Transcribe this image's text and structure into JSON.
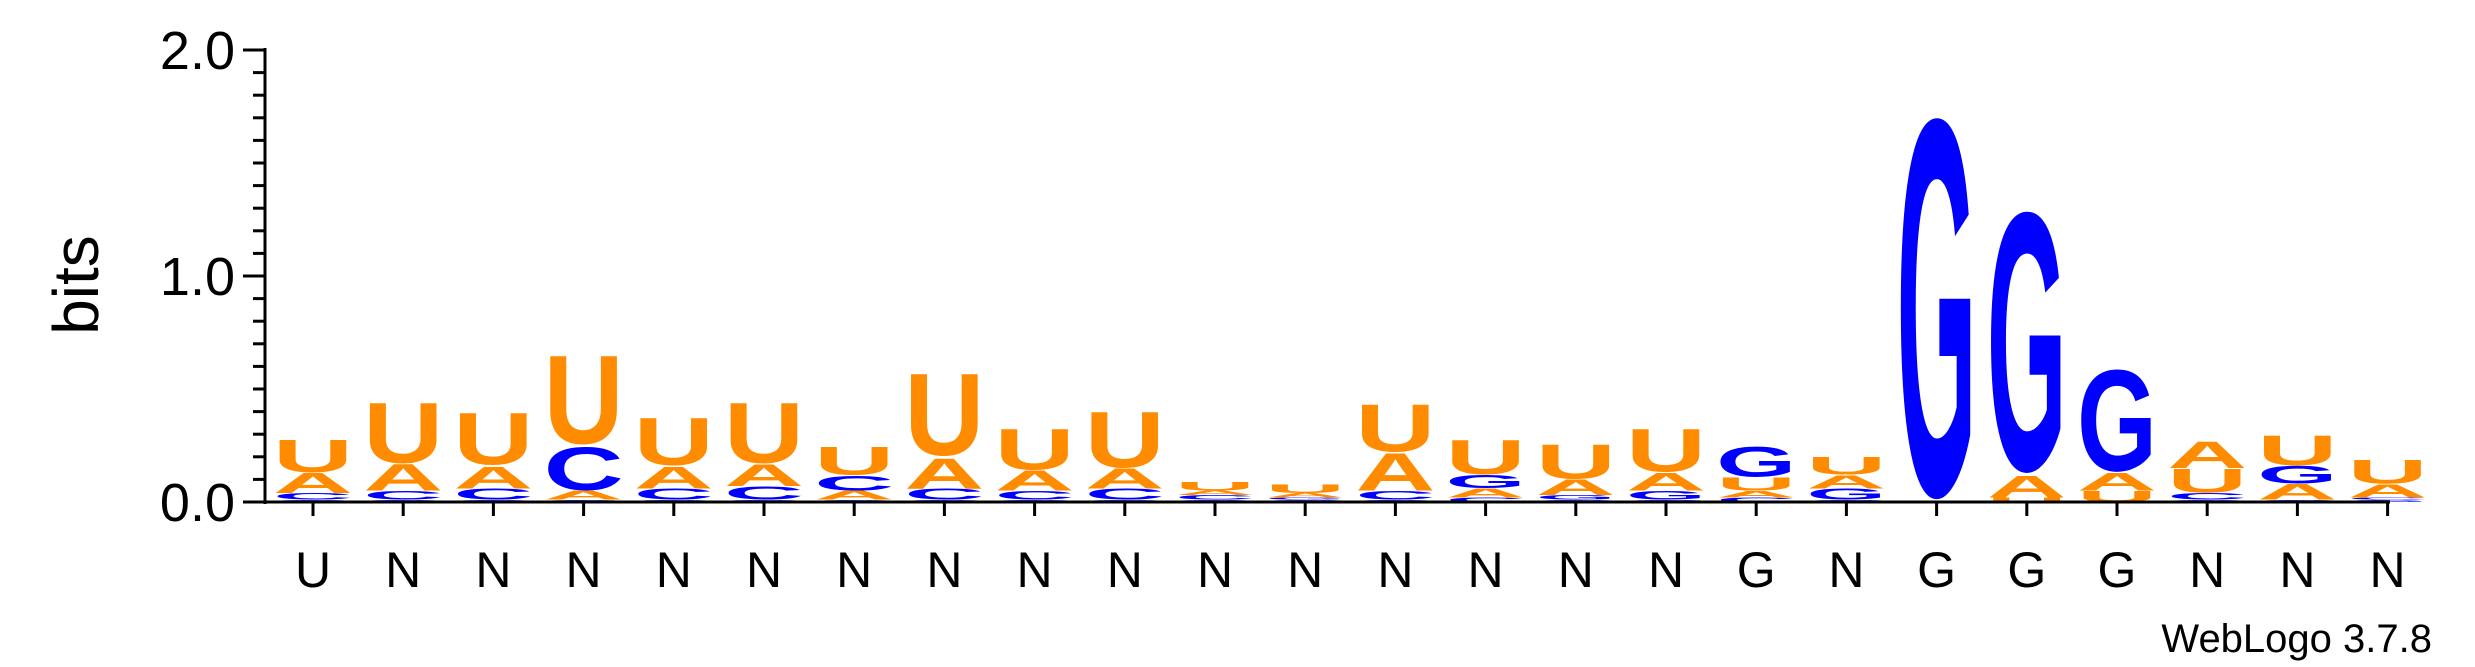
{
  "chart_data": {
    "type": "sequence-logo",
    "ylabel": "bits",
    "ylim": [
      0,
      2
    ],
    "yticks": [
      "0.0",
      "1.0",
      "2.0"
    ],
    "credit": "WebLogo 3.7.8",
    "colors": {
      "A": "#ff8c00",
      "U": "#ff8c00",
      "C": "#0000ff",
      "G": "#0000ff"
    },
    "positions": [
      {
        "label": "U",
        "stack": [
          [
            "G",
            0.01
          ],
          [
            "C",
            0.03
          ],
          [
            "A",
            0.09
          ],
          [
            "U",
            0.15
          ]
        ]
      },
      {
        "label": "N",
        "stack": [
          [
            "G",
            0.01
          ],
          [
            "C",
            0.04
          ],
          [
            "A",
            0.12
          ],
          [
            "U",
            0.28
          ]
        ]
      },
      {
        "label": "N",
        "stack": [
          [
            "G",
            0.01
          ],
          [
            "C",
            0.05
          ],
          [
            "A",
            0.1
          ],
          [
            "U",
            0.24
          ]
        ]
      },
      {
        "label": "N",
        "stack": [
          [
            "G",
            0.01
          ],
          [
            "A",
            0.04
          ],
          [
            "C",
            0.2
          ],
          [
            "U",
            0.41
          ]
        ]
      },
      {
        "label": "N",
        "stack": [
          [
            "G",
            0.01
          ],
          [
            "C",
            0.05
          ],
          [
            "A",
            0.1
          ],
          [
            "U",
            0.22
          ]
        ]
      },
      {
        "label": "N",
        "stack": [
          [
            "G",
            0.01
          ],
          [
            "C",
            0.06
          ],
          [
            "A",
            0.1
          ],
          [
            "U",
            0.28
          ]
        ]
      },
      {
        "label": "N",
        "stack": [
          [
            "G",
            0.01
          ],
          [
            "A",
            0.04
          ],
          [
            "C",
            0.07
          ],
          [
            "U",
            0.13
          ]
        ]
      },
      {
        "label": "N",
        "stack": [
          [
            "G",
            0.01
          ],
          [
            "C",
            0.05
          ],
          [
            "A",
            0.14
          ],
          [
            "U",
            0.38
          ]
        ]
      },
      {
        "label": "N",
        "stack": [
          [
            "G",
            0.01
          ],
          [
            "C",
            0.04
          ],
          [
            "A",
            0.09
          ],
          [
            "U",
            0.19
          ]
        ]
      },
      {
        "label": "N",
        "stack": [
          [
            "G",
            0.01
          ],
          [
            "C",
            0.05
          ],
          [
            "A",
            0.09
          ],
          [
            "U",
            0.26
          ]
        ]
      },
      {
        "label": "N",
        "stack": [
          [
            "G",
            0.01
          ],
          [
            "C",
            0.02
          ],
          [
            "A",
            0.02
          ],
          [
            "U",
            0.04
          ]
        ]
      },
      {
        "label": "N",
        "stack": [
          [
            "C",
            0.01
          ],
          [
            "G",
            0.01
          ],
          [
            "A",
            0.02
          ],
          [
            "U",
            0.04
          ]
        ]
      },
      {
        "label": "N",
        "stack": [
          [
            "G",
            0.01
          ],
          [
            "C",
            0.04
          ],
          [
            "A",
            0.17
          ],
          [
            "U",
            0.22
          ]
        ]
      },
      {
        "label": "N",
        "stack": [
          [
            "C",
            0.02
          ],
          [
            "A",
            0.04
          ],
          [
            "G",
            0.06
          ],
          [
            "U",
            0.16
          ]
        ]
      },
      {
        "label": "N",
        "stack": [
          [
            "C",
            0.01
          ],
          [
            "G",
            0.02
          ],
          [
            "A",
            0.07
          ],
          [
            "U",
            0.16
          ]
        ]
      },
      {
        "label": "N",
        "stack": [
          [
            "C",
            0.01
          ],
          [
            "G",
            0.04
          ],
          [
            "A",
            0.08
          ],
          [
            "U",
            0.2
          ]
        ]
      },
      {
        "label": "G",
        "stack": [
          [
            "C",
            0.02
          ],
          [
            "A",
            0.03
          ],
          [
            "U",
            0.06
          ],
          [
            "G",
            0.14
          ]
        ]
      },
      {
        "label": "N",
        "stack": [
          [
            "C",
            0.01
          ],
          [
            "G",
            0.05
          ],
          [
            "A",
            0.06
          ],
          [
            "U",
            0.08
          ]
        ]
      },
      {
        "label": "G",
        "stack": [
          [
            "G",
            1.75
          ]
        ]
      },
      {
        "label": "G",
        "stack": [
          [
            "U",
            0.02
          ],
          [
            "A",
            0.1
          ],
          [
            "G",
            1.2
          ]
        ]
      },
      {
        "label": "G",
        "stack": [
          [
            "U",
            0.05
          ],
          [
            "A",
            0.08
          ],
          [
            "G",
            0.47
          ]
        ]
      },
      {
        "label": "N",
        "stack": [
          [
            "G",
            0.01
          ],
          [
            "C",
            0.03
          ],
          [
            "U",
            0.11
          ],
          [
            "A",
            0.12
          ]
        ]
      },
      {
        "label": "N",
        "stack": [
          [
            "C",
            0.01
          ],
          [
            "A",
            0.07
          ],
          [
            "G",
            0.08
          ],
          [
            "U",
            0.14
          ]
        ]
      },
      {
        "label": "N",
        "stack": [
          [
            "G",
            0.01
          ],
          [
            "C",
            0.01
          ],
          [
            "A",
            0.06
          ],
          [
            "U",
            0.11
          ]
        ]
      }
    ]
  }
}
